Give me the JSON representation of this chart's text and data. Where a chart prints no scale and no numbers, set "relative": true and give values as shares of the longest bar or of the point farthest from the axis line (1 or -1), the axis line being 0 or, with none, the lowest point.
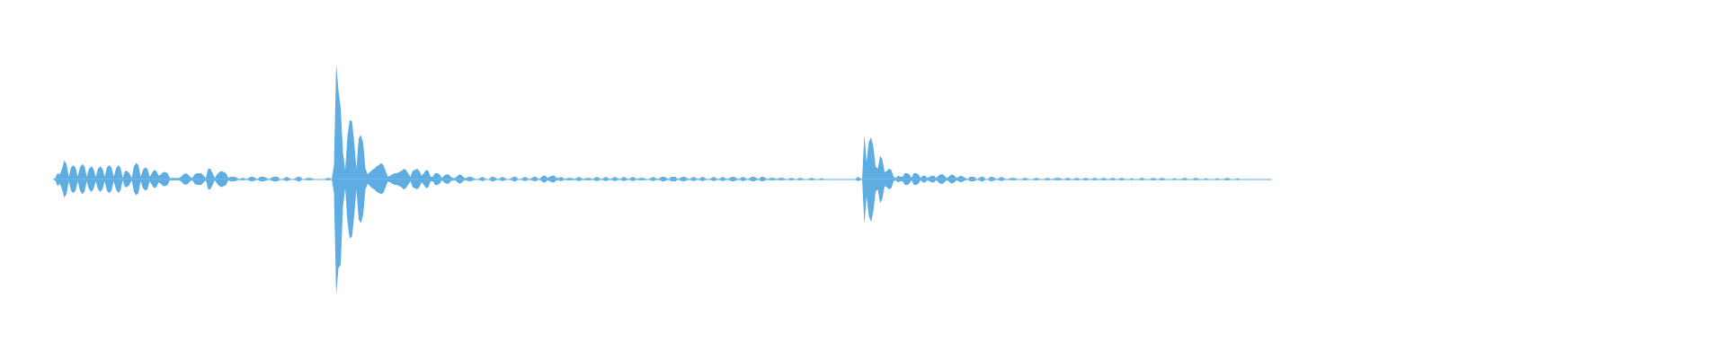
{
  "chart_data": {
    "type": "area",
    "relative": true,
    "categories": [
      null,
      null,
      null,
      null,
      null,
      null,
      null,
      null,
      null,
      null,
      null,
      null,
      null,
      null,
      null,
      null,
      null,
      null,
      null,
      null,
      null,
      null,
      null,
      null,
      null,
      null,
      null,
      null,
      null,
      null,
      null,
      null,
      null,
      null,
      null,
      null,
      null,
      null,
      null,
      null,
      null,
      null,
      null,
      null,
      null,
      null,
      null,
      null,
      null,
      null,
      null,
      null,
      null,
      null,
      null,
      null,
      null,
      null,
      null,
      null,
      null,
      null,
      null,
      null,
      null,
      null,
      null,
      null,
      null,
      null,
      null,
      null,
      null,
      null,
      null,
      null,
      null,
      null,
      null,
      null,
      null,
      null,
      null,
      null,
      null,
      null,
      null,
      null,
      null,
      null,
      null,
      null,
      null,
      null,
      null,
      null,
      null,
      null,
      null,
      null,
      null,
      null,
      null,
      null,
      null,
      null,
      null,
      null,
      null,
      null,
      null,
      null,
      null,
      null,
      null,
      null,
      null,
      null,
      null,
      null,
      null,
      null,
      null,
      null,
      null,
      null,
      null,
      null,
      null,
      null,
      null,
      null,
      null,
      null,
      null,
      null,
      null,
      null,
      null,
      null,
      null,
      null,
      null,
      null,
      null,
      null,
      null,
      null,
      null,
      null,
      null,
      null,
      null,
      null,
      null,
      null,
      null,
      null,
      null,
      null,
      null,
      null,
      null,
      null,
      null,
      null,
      null,
      null,
      null,
      null,
      null,
      null,
      null,
      null,
      null,
      null,
      null,
      null,
      null,
      null,
      null,
      null,
      null,
      null,
      null,
      null,
      null,
      null,
      null,
      null,
      null,
      null,
      null,
      null,
      null,
      null,
      null,
      null,
      null,
      null,
      null,
      null,
      null,
      null,
      null,
      null,
      null,
      null,
      null,
      null,
      null,
      null,
      null,
      null,
      null,
      null,
      null,
      null,
      null,
      null,
      null,
      null,
      null,
      null,
      null,
      null,
      null,
      null,
      null,
      null,
      null,
      null,
      null,
      null,
      null,
      null,
      null,
      null,
      null,
      null,
      null,
      null,
      null,
      null,
      null,
      null,
      null,
      null,
      null,
      null,
      null,
      null,
      null,
      null,
      null,
      null,
      null,
      null,
      null,
      null,
      null,
      null,
      null,
      null,
      null,
      null,
      null,
      null,
      null,
      null,
      null,
      null,
      null,
      null,
      null,
      null,
      null,
      null,
      null,
      null,
      null,
      null,
      null,
      null,
      null,
      null,
      null,
      null,
      null,
      null,
      null,
      null,
      null,
      null,
      null,
      null,
      null,
      null,
      null,
      null,
      null,
      null,
      null,
      null,
      null,
      null,
      null,
      null,
      null,
      null,
      null,
      null,
      null,
      null,
      null,
      null,
      null,
      null,
      null,
      null,
      null,
      null,
      null,
      null,
      null,
      null,
      null,
      null,
      null,
      null,
      null,
      null,
      null,
      null,
      null,
      null,
      null,
      null,
      null,
      null,
      null,
      null,
      null,
      null,
      null,
      null,
      null,
      null,
      null,
      null,
      null,
      null,
      null,
      null,
      null,
      null,
      null,
      null,
      null,
      null,
      null,
      null,
      null,
      null,
      null,
      null,
      null,
      null,
      null,
      null,
      null,
      null,
      null,
      null,
      null,
      null,
      null,
      null,
      null,
      null,
      null,
      null,
      null,
      null,
      null,
      null,
      null,
      null,
      null,
      null,
      null,
      null,
      null,
      null,
      null,
      null,
      null,
      null,
      null,
      null,
      null,
      null,
      null,
      null,
      null,
      null,
      null,
      null,
      null,
      null,
      null,
      null,
      null,
      null,
      null,
      null,
      null,
      null,
      null,
      null,
      null,
      null,
      null,
      null,
      null,
      null,
      null,
      null,
      null,
      null,
      null,
      null,
      null,
      null,
      null,
      null,
      null,
      null,
      null,
      null,
      null,
      null,
      null,
      null,
      null,
      null,
      null,
      null,
      null,
      null,
      null,
      null,
      null,
      null,
      null,
      null,
      null,
      null,
      null,
      null,
      null,
      null,
      null,
      null,
      null,
      null,
      null,
      null,
      null,
      null,
      null,
      null,
      null,
      null,
      null,
      null,
      null,
      null,
      null,
      null,
      null,
      null,
      null,
      null,
      null,
      null,
      null,
      null,
      null,
      null,
      null,
      null,
      null,
      null,
      null,
      null,
      null,
      null,
      null,
      null,
      null,
      null,
      null,
      null,
      null,
      null,
      null,
      null,
      null,
      null,
      null,
      null,
      null,
      null,
      null,
      null,
      null,
      null,
      null,
      null,
      null,
      null,
      null,
      null,
      null,
      null,
      null,
      null,
      null,
      null,
      null,
      null,
      null,
      null,
      null,
      null,
      null,
      null,
      null,
      null,
      null,
      null,
      null
    ],
    "series": [
      {
        "color": "#5dade2",
        "values": [
          0,
          0.01,
          0.05,
          0.04,
          0.09,
          0.16,
          0.13,
          0.02,
          0.1,
          0.12,
          0.1,
          0.02,
          0.1,
          0.13,
          0.11,
          0.02,
          0.09,
          0.11,
          0.09,
          0.02,
          0.09,
          0.11,
          0.09,
          0.02,
          0.1,
          0.12,
          0.1,
          0.02,
          0.09,
          0.12,
          0.1,
          0.01,
          0.07,
          0.07,
          0.05,
          0.01,
          0.11,
          0.14,
          0.12,
          0.02,
          0.08,
          0.1,
          0.09,
          0.02,
          0.05,
          0.08,
          0.07,
          0.03,
          0.04,
          0.06,
          0.06,
          0.05,
          0.01,
          0.01,
          0.01,
          0.01,
          0.01,
          0.02,
          0.04,
          0.05,
          0.04,
          0.02,
          0.01,
          0.04,
          0.05,
          0.05,
          0.05,
          0.03,
          0.01,
          0.09,
          0.09,
          0.05,
          0.01,
          0.04,
          0.06,
          0.07,
          0.06,
          0.05,
          0.01,
          0.02,
          0.02,
          0.02,
          0.01,
          0,
          0.01,
          0.01,
          0,
          0.01,
          0.02,
          0.02,
          0.01,
          0,
          0.02,
          0.02,
          0.02,
          0.01,
          0,
          0.01,
          0.02,
          0.02,
          0.02,
          0,
          0,
          0.01,
          0.02,
          0.01,
          0,
          0,
          0.01,
          0.02,
          0.02,
          0,
          0,
          0.01,
          0.01,
          0.01,
          0,
          0,
          0,
          0,
          0,
          0,
          0.01,
          0.01,
          0,
          0.12,
          0.99,
          0.77,
          0.61,
          0.23,
          0.08,
          0.37,
          0.51,
          0.5,
          0.32,
          0.09,
          0.35,
          0.38,
          0.31,
          0.09,
          0.04,
          0.06,
          0.08,
          0.09,
          0.11,
          0.12,
          0.14,
          0.12,
          0.07,
          0.02,
          0.03,
          0.04,
          0.05,
          0.05,
          0.06,
          0.07,
          0.09,
          0.08,
          0.05,
          0.02,
          0.07,
          0.08,
          0.09,
          0.07,
          0.03,
          0.05,
          0.08,
          0.07,
          0.02,
          0.02,
          0.05,
          0.05,
          0.04,
          0.01,
          0.03,
          0.04,
          0.04,
          0.02,
          0.01,
          0.01,
          0.03,
          0.04,
          0.03,
          0.01,
          0.01,
          0.02,
          0.02,
          0.01,
          0,
          0,
          0.01,
          0.02,
          0.01,
          0,
          0,
          0.02,
          0.02,
          0.01,
          0,
          0.01,
          0.02,
          0.01,
          0,
          0,
          0.01,
          0.02,
          0.02,
          0,
          0,
          0.01,
          0.02,
          0.01,
          0,
          0.01,
          0.02,
          0.02,
          0,
          0.01,
          0.03,
          0.03,
          0.01,
          0.02,
          0.03,
          0.03,
          0.01,
          0.01,
          0.02,
          0.01,
          0,
          0.01,
          0.01,
          0.01,
          0,
          0.01,
          0.02,
          0.01,
          0,
          0.01,
          0.01,
          0.01,
          0,
          0.01,
          0.02,
          0.01,
          0,
          0.01,
          0.02,
          0.01,
          0,
          0.01,
          0.02,
          0.01,
          0,
          0.01,
          0.02,
          0.01,
          0,
          0.01,
          0.02,
          0.01,
          0,
          0.01,
          0.01,
          0.01,
          0,
          0,
          0.01,
          0.02,
          0.01,
          0,
          0.01,
          0.02,
          0.02,
          0.01,
          0,
          0.02,
          0.02,
          0.02,
          0,
          0.01,
          0.02,
          0.02,
          0.01,
          0,
          0.01,
          0.02,
          0.01,
          0,
          0.01,
          0.02,
          0.01,
          0,
          0,
          0.01,
          0.02,
          0.01,
          0,
          0.01,
          0.02,
          0.01,
          0,
          0.01,
          0.02,
          0.02,
          0.01,
          0,
          0.01,
          0.02,
          0.01,
          0,
          0.01,
          0.02,
          0.02,
          0.01,
          0,
          0.02,
          0.02,
          0.01,
          0,
          0.01,
          0.01,
          0.01,
          0,
          0.01,
          0.01,
          0.01,
          0,
          0,
          0.01,
          0.01,
          0,
          0,
          0.01,
          0.01,
          0,
          0,
          0,
          0.01,
          0.01,
          0,
          0,
          0,
          0.01,
          0,
          0,
          0,
          0,
          0,
          0,
          0,
          0,
          0,
          0,
          0,
          0,
          0,
          0,
          0,
          0.02,
          0.01,
          0,
          0.38,
          0.15,
          0.32,
          0.36,
          0.28,
          0.11,
          0.09,
          0.2,
          0.17,
          0.06,
          0.07,
          0.09,
          0.08,
          0.02,
          0.01,
          0.03,
          0.02,
          0.02,
          0.05,
          0.05,
          0.04,
          0.01,
          0.05,
          0.05,
          0.04,
          0.01,
          0.03,
          0.03,
          0.01,
          0.02,
          0.03,
          0.03,
          0.01,
          0.03,
          0.04,
          0.04,
          0.02,
          0.01,
          0.03,
          0.04,
          0.03,
          0.01,
          0.02,
          0.03,
          0.02,
          0.01,
          0,
          0.02,
          0.02,
          0.02,
          0,
          0.01,
          0.02,
          0.02,
          0,
          0,
          0.02,
          0.02,
          0.01,
          0,
          0.01,
          0.02,
          0.01,
          0,
          0,
          0.01,
          0.01,
          0.01,
          0,
          0,
          0,
          0.01,
          0.01,
          0,
          0,
          0,
          0.01,
          0.01,
          0,
          0,
          0,
          0.01,
          0.01,
          0,
          0,
          0.01,
          0.01,
          0.01,
          0,
          0,
          0.01,
          0.01,
          0,
          0,
          0.01,
          0.01,
          0,
          0,
          0.01,
          0.01,
          0,
          0,
          0.01,
          0.01,
          0,
          0,
          0.01,
          0.01,
          0,
          0,
          0.01,
          0.01,
          0,
          0,
          0.01,
          0.01,
          0,
          0,
          0,
          0.01,
          0,
          0,
          0,
          0.01,
          0.01,
          0,
          0,
          0,
          0.01,
          0.01,
          0,
          0,
          0.01,
          0.01,
          0,
          0,
          0,
          0,
          0.01,
          0,
          0,
          0,
          0.01,
          0.01,
          0,
          0,
          0,
          0.01,
          0.01,
          0,
          0,
          0,
          0.01,
          0,
          0,
          0,
          0,
          0.01,
          0,
          0,
          0,
          0.01,
          0.01,
          0,
          0,
          0,
          0.01,
          0,
          0,
          0,
          0,
          0,
          0,
          0,
          0,
          0,
          0,
          0,
          0,
          0,
          0,
          0
        ]
      },
      {
        "color": "#5eade2",
        "values": [
          0,
          -0.01,
          -0.06,
          -0.04,
          -0.09,
          -0.16,
          -0.13,
          -0.02,
          -0.1,
          -0.12,
          -0.1,
          -0.02,
          -0.1,
          -0.13,
          -0.11,
          -0.02,
          -0.09,
          -0.11,
          -0.09,
          -0.02,
          -0.09,
          -0.11,
          -0.09,
          -0.02,
          -0.1,
          -0.12,
          -0.1,
          -0.02,
          -0.09,
          -0.12,
          -0.1,
          -0.01,
          -0.07,
          -0.07,
          -0.05,
          -0.01,
          -0.11,
          -0.14,
          -0.12,
          -0.02,
          -0.08,
          -0.1,
          -0.09,
          -0.02,
          -0.05,
          -0.08,
          -0.07,
          -0.03,
          -0.04,
          -0.06,
          -0.06,
          -0.05,
          -0.01,
          -0.01,
          -0.01,
          -0.01,
          -0.01,
          -0.02,
          -0.04,
          -0.05,
          -0.04,
          -0.02,
          -0.01,
          -0.04,
          -0.05,
          -0.05,
          -0.05,
          -0.03,
          -0.01,
          -0.09,
          -0.09,
          -0.05,
          -0.01,
          -0.04,
          -0.06,
          -0.07,
          -0.06,
          -0.05,
          -0.01,
          -0.02,
          -0.02,
          -0.02,
          -0.01,
          0,
          -0.01,
          -0.01,
          0,
          -0.01,
          -0.02,
          -0.02,
          -0.01,
          0,
          -0.02,
          -0.02,
          -0.02,
          -0.01,
          0,
          -0.01,
          -0.02,
          -0.02,
          -0.02,
          0,
          0,
          -0.01,
          -0.02,
          -0.01,
          0,
          0,
          -0.01,
          -0.02,
          -0.02,
          0,
          0,
          -0.01,
          -0.01,
          -0.01,
          0,
          0,
          0,
          0,
          0,
          0,
          -0.01,
          -0.01,
          0,
          -0.12,
          -1,
          -0.77,
          -0.74,
          -0.24,
          -0.08,
          -0.37,
          -0.51,
          -0.5,
          -0.32,
          -0.09,
          -0.35,
          -0.38,
          -0.31,
          -0.09,
          -0.04,
          -0.06,
          -0.08,
          -0.09,
          -0.11,
          -0.12,
          -0.13,
          -0.12,
          -0.07,
          -0.02,
          -0.03,
          -0.04,
          -0.05,
          -0.05,
          -0.06,
          -0.07,
          -0.09,
          -0.08,
          -0.05,
          -0.02,
          -0.07,
          -0.08,
          -0.09,
          -0.07,
          -0.03,
          -0.05,
          -0.08,
          -0.07,
          -0.02,
          -0.02,
          -0.05,
          -0.05,
          -0.04,
          -0.01,
          -0.03,
          -0.04,
          -0.04,
          -0.02,
          -0.01,
          -0.01,
          -0.03,
          -0.04,
          -0.03,
          -0.01,
          -0.01,
          -0.02,
          -0.02,
          -0.01,
          0,
          0,
          -0.01,
          -0.02,
          -0.01,
          0,
          0,
          -0.02,
          -0.02,
          -0.01,
          0,
          -0.01,
          -0.02,
          -0.01,
          0,
          0,
          -0.01,
          -0.02,
          -0.02,
          0,
          0,
          -0.01,
          -0.02,
          -0.01,
          0,
          -0.01,
          -0.02,
          -0.02,
          0,
          -0.01,
          -0.03,
          -0.03,
          -0.01,
          -0.02,
          -0.03,
          -0.03,
          -0.01,
          -0.01,
          -0.02,
          -0.01,
          0,
          -0.01,
          -0.01,
          -0.01,
          0,
          -0.01,
          -0.02,
          -0.01,
          0,
          -0.01,
          -0.01,
          -0.01,
          0,
          -0.01,
          -0.02,
          -0.01,
          0,
          -0.01,
          -0.02,
          -0.01,
          0,
          -0.01,
          -0.02,
          -0.01,
          0,
          -0.01,
          -0.02,
          -0.01,
          0,
          -0.01,
          -0.02,
          -0.01,
          0,
          -0.01,
          -0.01,
          -0.01,
          0,
          0,
          -0.01,
          -0.02,
          -0.01,
          0,
          -0.01,
          -0.02,
          -0.02,
          -0.01,
          0,
          -0.02,
          -0.02,
          -0.02,
          0,
          -0.01,
          -0.02,
          -0.02,
          -0.01,
          0,
          -0.01,
          -0.02,
          -0.01,
          0,
          -0.01,
          -0.02,
          -0.01,
          0,
          0,
          -0.01,
          -0.02,
          -0.01,
          0,
          -0.01,
          -0.02,
          -0.01,
          0,
          -0.01,
          -0.02,
          -0.02,
          -0.01,
          0,
          -0.01,
          -0.02,
          -0.01,
          0,
          -0.01,
          -0.02,
          -0.02,
          -0.01,
          0,
          -0.02,
          -0.02,
          -0.01,
          0,
          -0.01,
          -0.01,
          -0.01,
          0,
          -0.01,
          -0.01,
          -0.01,
          0,
          0,
          -0.01,
          -0.01,
          0,
          0,
          -0.01,
          -0.01,
          0,
          0,
          0,
          -0.01,
          -0.01,
          0,
          0,
          0,
          -0.01,
          0,
          0,
          0,
          0,
          0,
          0,
          0,
          0,
          0,
          0,
          0,
          0,
          0,
          0,
          0,
          -0.02,
          -0.01,
          0,
          -0.39,
          -0.15,
          -0.32,
          -0.37,
          -0.28,
          -0.11,
          -0.09,
          -0.21,
          -0.17,
          -0.06,
          -0.07,
          -0.09,
          -0.08,
          -0.02,
          -0.01,
          -0.03,
          -0.02,
          -0.02,
          -0.05,
          -0.05,
          -0.04,
          -0.01,
          -0.05,
          -0.05,
          -0.04,
          -0.01,
          -0.03,
          -0.03,
          -0.01,
          -0.02,
          -0.03,
          -0.03,
          -0.01,
          -0.03,
          -0.04,
          -0.04,
          -0.02,
          -0.01,
          -0.03,
          -0.04,
          -0.03,
          -0.01,
          -0.02,
          -0.03,
          -0.02,
          -0.01,
          0,
          -0.02,
          -0.02,
          -0.02,
          0,
          -0.01,
          -0.02,
          -0.02,
          0,
          0,
          -0.02,
          -0.02,
          -0.01,
          0,
          -0.01,
          -0.02,
          -0.01,
          0,
          0,
          -0.01,
          -0.01,
          -0.01,
          0,
          0,
          0,
          -0.01,
          -0.01,
          0,
          0,
          0,
          -0.01,
          -0.01,
          0,
          0,
          0,
          -0.01,
          -0.01,
          0,
          0,
          -0.01,
          -0.01,
          -0.01,
          0,
          0,
          -0.01,
          -0.01,
          0,
          0,
          -0.01,
          -0.01,
          0,
          0,
          -0.01,
          -0.01,
          0,
          0,
          -0.01,
          -0.01,
          0,
          0,
          -0.01,
          -0.01,
          0,
          0,
          -0.01,
          -0.01,
          0,
          0,
          -0.01,
          -0.01,
          0,
          0,
          0,
          -0.01,
          0,
          0,
          0,
          -0.01,
          -0.01,
          0,
          0,
          0,
          -0.01,
          -0.01,
          0,
          0,
          -0.01,
          -0.01,
          0,
          0,
          0,
          0,
          -0.01,
          0,
          0,
          0,
          -0.01,
          -0.01,
          0,
          0,
          0,
          -0.01,
          -0.01,
          0,
          0,
          0,
          -0.01,
          0,
          0,
          0,
          0,
          -0.01,
          0,
          0,
          0,
          -0.01,
          -0.01,
          0,
          0,
          0,
          -0.01,
          0,
          0,
          0,
          0,
          0,
          0,
          0,
          0,
          0,
          0,
          0,
          0,
          0,
          0,
          0
        ]
      }
    ]
  }
}
